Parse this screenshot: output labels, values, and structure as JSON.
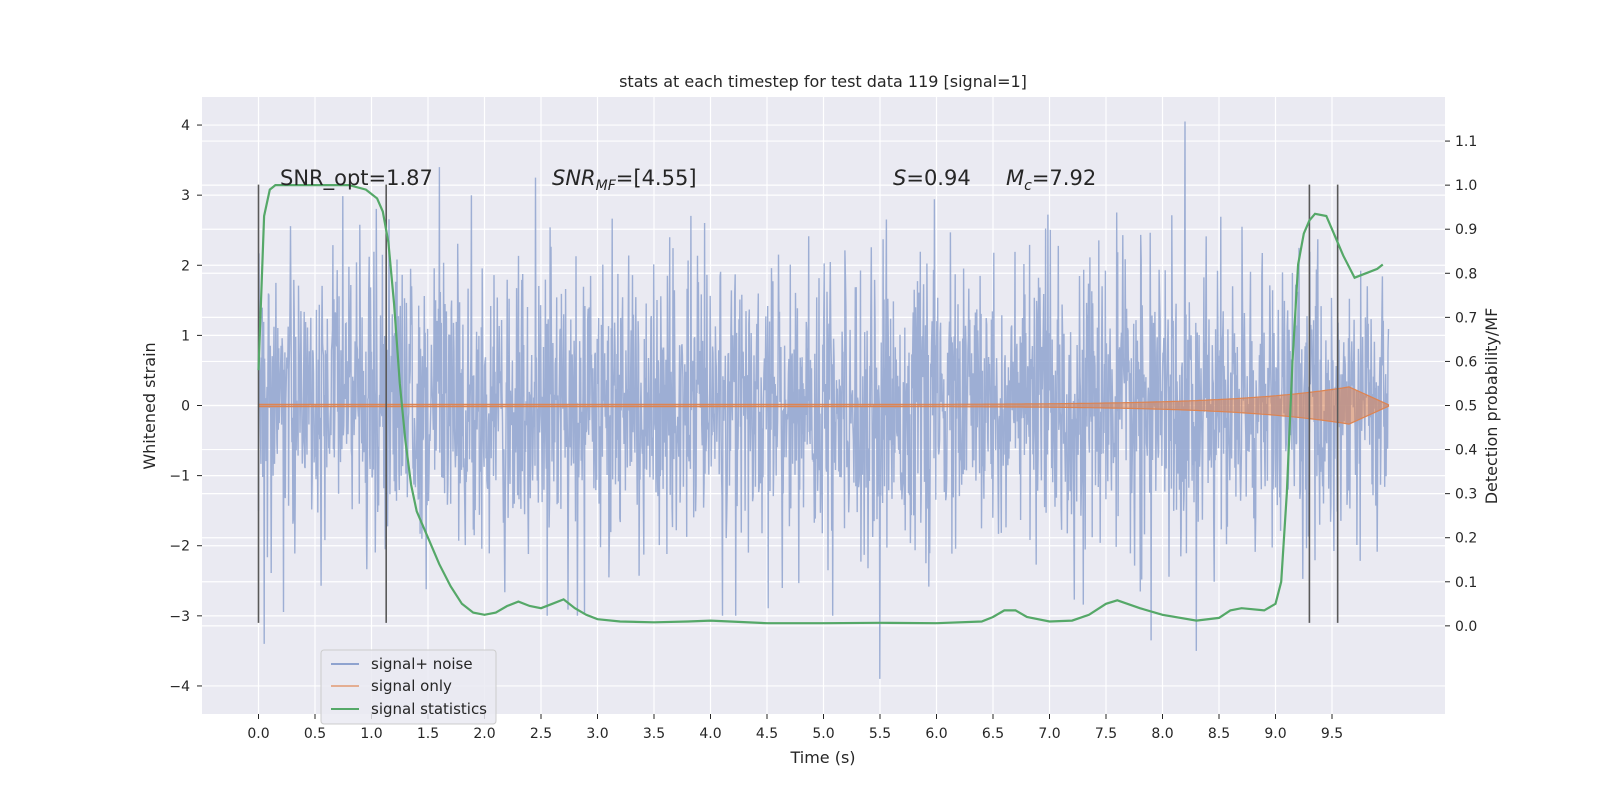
{
  "chart_data": {
    "type": "line",
    "title": "stats at each timestep for test data 119 [signal=1]",
    "xlabel": "Time (s)",
    "ylabel": "Whitened strain",
    "ylabel_right": "Detection probability/MF",
    "xlim": [
      -0.5,
      10.5
    ],
    "ylim": [
      -4.4,
      4.4
    ],
    "ylim_right": [
      -0.2,
      1.2
    ],
    "grid": true,
    "x_ticks": [
      "0.0",
      "0.5",
      "1.0",
      "1.5",
      "2.0",
      "2.5",
      "3.0",
      "3.5",
      "4.0",
      "4.5",
      "5.0",
      "5.5",
      "6.0",
      "6.5",
      "7.0",
      "7.5",
      "8.0",
      "8.5",
      "9.0",
      "9.5"
    ],
    "y_ticks": [
      "4",
      "3",
      "2",
      "1",
      "0",
      "−1",
      "−2",
      "−3",
      "−4"
    ],
    "y_right_ticks": [
      "1.1",
      "1.0",
      "0.9",
      "0.8",
      "0.7",
      "0.6",
      "0.5",
      "0.4",
      "0.3",
      "0.2",
      "0.1",
      "0.0"
    ],
    "annotations": {
      "snr_opt": "SNR_opt=1.87",
      "snr_mf_sym": "SNR",
      "snr_mf_sub": "MF",
      "snr_mf_val": "=[4.55]",
      "s_sym": "S",
      "s_val": "=0.94",
      "mc_sym": "M",
      "mc_sub": "c",
      "mc_val": "=7.92"
    },
    "legend": {
      "placement": "lower-left",
      "entries": [
        "signal+ noise",
        "signal only",
        "signal statistics"
      ]
    },
    "colors": {
      "noise": "#8fa3cf",
      "signal": "#dd8452",
      "stats": "#55a868",
      "vlines": "#595959",
      "background": "#eaeaf2"
    },
    "series": [
      {
        "name": "signal+ noise",
        "axis": "left",
        "x_range": [
          0,
          10
        ],
        "envelope_typical": 1.3,
        "peaks": [
          {
            "x": 0.05,
            "y": -3.4
          },
          {
            "x": 1.6,
            "y": 3.4
          },
          {
            "x": 2.45,
            "y": 3.25
          },
          {
            "x": 5.5,
            "y": -3.9
          },
          {
            "x": 7.9,
            "y": -3.35
          },
          {
            "x": 8.2,
            "y": 4.05
          },
          {
            "x": 8.3,
            "y": -3.5
          }
        ]
      },
      {
        "name": "signal only",
        "axis": "left",
        "x_range": [
          0,
          10
        ],
        "chirp_end": 9.65,
        "max_amplitude": 0.25
      },
      {
        "name": "signal statistics",
        "axis": "right",
        "x": [
          0.0,
          0.05,
          0.1,
          0.15,
          0.25,
          0.4,
          0.6,
          0.8,
          0.95,
          1.05,
          1.1,
          1.15,
          1.2,
          1.25,
          1.3,
          1.35,
          1.4,
          1.5,
          1.6,
          1.7,
          1.8,
          1.9,
          2.0,
          2.1,
          2.2,
          2.3,
          2.4,
          2.5,
          2.6,
          2.7,
          2.8,
          2.9,
          3.0,
          3.2,
          3.5,
          3.8,
          4.0,
          4.5,
          5.0,
          5.5,
          6.0,
          6.4,
          6.5,
          6.6,
          6.7,
          6.8,
          7.0,
          7.2,
          7.35,
          7.5,
          7.6,
          7.8,
          8.0,
          8.3,
          8.5,
          8.6,
          8.7,
          8.9,
          9.0,
          9.05,
          9.1,
          9.15,
          9.2,
          9.25,
          9.3,
          9.35,
          9.45,
          9.5,
          9.6,
          9.7,
          9.8,
          9.9,
          9.95
        ],
        "values": [
          0.58,
          0.93,
          0.99,
          1.0,
          1.0,
          1.0,
          1.0,
          1.0,
          0.99,
          0.97,
          0.94,
          0.87,
          0.73,
          0.55,
          0.42,
          0.32,
          0.26,
          0.2,
          0.14,
          0.09,
          0.05,
          0.03,
          0.025,
          0.03,
          0.045,
          0.055,
          0.045,
          0.04,
          0.05,
          0.06,
          0.04,
          0.025,
          0.015,
          0.01,
          0.008,
          0.01,
          0.012,
          0.006,
          0.006,
          0.007,
          0.006,
          0.01,
          0.02,
          0.035,
          0.035,
          0.02,
          0.01,
          0.012,
          0.025,
          0.05,
          0.058,
          0.04,
          0.025,
          0.012,
          0.018,
          0.035,
          0.04,
          0.035,
          0.05,
          0.1,
          0.3,
          0.6,
          0.82,
          0.89,
          0.92,
          0.935,
          0.93,
          0.9,
          0.84,
          0.79,
          0.8,
          0.81,
          0.82
        ]
      }
    ],
    "vertical_lines": [
      {
        "x": 0.0,
        "range": [
          -3.1,
          3.15
        ]
      },
      {
        "x": 1.13,
        "range": [
          -3.1,
          3.15
        ]
      },
      {
        "x": 9.3,
        "range": [
          -3.1,
          3.15
        ]
      },
      {
        "x": 9.55,
        "range": [
          -3.1,
          3.15
        ]
      }
    ]
  }
}
